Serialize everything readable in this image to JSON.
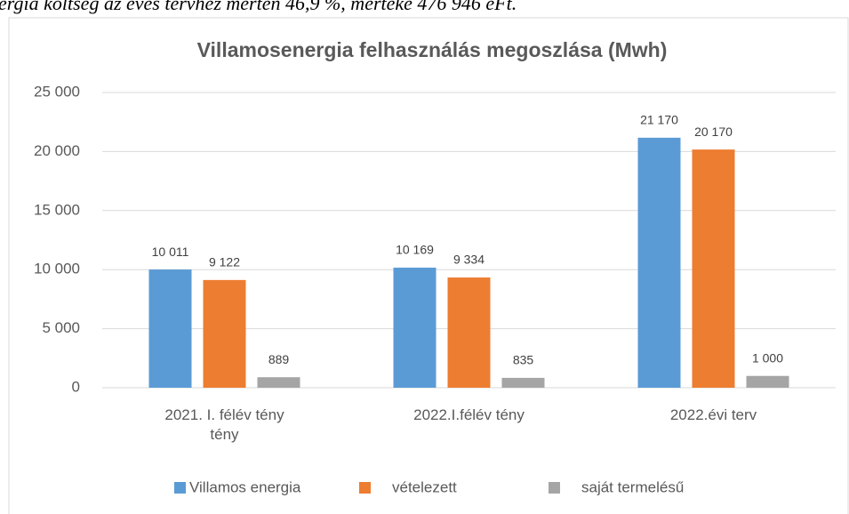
{
  "page_text": "ergia költség az éves tervhez mérten 46,9 %, mértéke 476 946 eFt.",
  "chart_data": {
    "type": "bar",
    "title": "Villamosenergia felhasználás megoszlása (Mwh)",
    "categories": [
      "2021. I. félév tény tény",
      "2022.I.félév tény",
      "2022.évi terv"
    ],
    "series": [
      {
        "name": "Villamos energia",
        "color": "#5b9bd5",
        "values": [
          10011,
          10169,
          21170
        ],
        "value_labels": [
          "10 011",
          "10 169",
          "21 170"
        ]
      },
      {
        "name": "vételezett",
        "color": "#ed7d31",
        "values": [
          9122,
          9334,
          20170
        ],
        "value_labels": [
          "9 122",
          "9 334",
          "20 170"
        ]
      },
      {
        "name": "saját termelésű",
        "color": "#a5a5a5",
        "values": [
          889,
          835,
          1000
        ],
        "value_labels": [
          "889",
          "835",
          "1 000"
        ]
      }
    ],
    "ylim": [
      0,
      25000
    ],
    "yticks": [
      0,
      {
        "value": 5000,
        "label": "5 000"
      },
      {
        "value": 10000,
        "label": "10 000"
      },
      {
        "value": 15000,
        "label": "15 000"
      },
      {
        "value": 20000,
        "label": "20 000"
      },
      {
        "value": 25000,
        "label": "25 000"
      }
    ],
    "grid": true,
    "legend": "bottom"
  }
}
